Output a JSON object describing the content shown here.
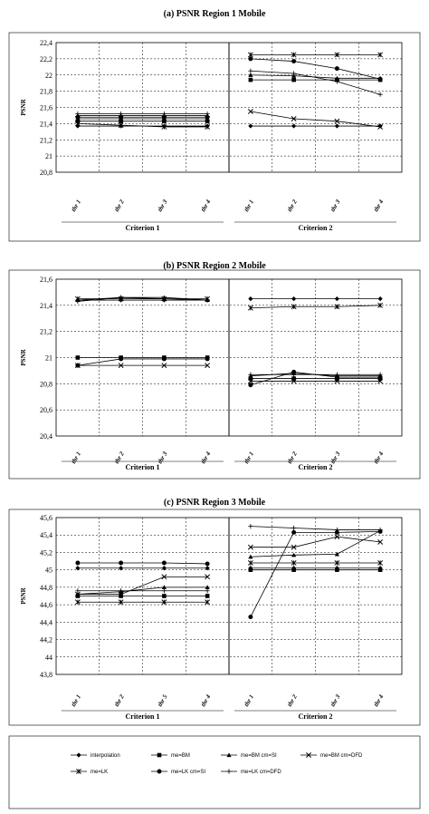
{
  "chart_data": [
    {
      "type": "line",
      "title": "(a)   PSNR Region 1 Mobile",
      "ylabel": "PSNR",
      "ylim": [
        20.8,
        22.4
      ],
      "yticks": [
        "20,8",
        "21",
        "21,2",
        "21,4",
        "21,6",
        "21,8",
        "22",
        "22,2",
        "22,4"
      ],
      "ytick_values": [
        20.8,
        21,
        21.2,
        21.4,
        21.6,
        21.8,
        22,
        22.2,
        22.4
      ],
      "groups": [
        {
          "label": "Criterion 1",
          "categories": [
            "thr 1",
            "thr 2",
            "thr 3",
            "thr 4"
          ]
        },
        {
          "label": "Criterion 2",
          "categories": [
            "thr 1",
            "thr 2",
            "thr 3",
            "thr 4"
          ]
        }
      ],
      "series": [
        {
          "name": "interpolation",
          "values": [
            [
              21.37,
              21.37,
              21.37,
              21.37
            ],
            [
              21.37,
              21.37,
              21.37,
              21.37
            ]
          ]
        },
        {
          "name": "me=BM",
          "values": [
            [
              21.43,
              21.43,
              21.43,
              21.43
            ],
            [
              21.94,
              21.94,
              21.94,
              21.94
            ]
          ]
        },
        {
          "name": "me=BM cm=SI",
          "values": [
            [
              21.5,
              21.5,
              21.5,
              21.5
            ],
            [
              22.0,
              21.99,
              21.96,
              21.96
            ]
          ]
        },
        {
          "name": "me=BM cm=DFD",
          "values": [
            [
              21.46,
              21.46,
              21.46,
              21.46
            ],
            [
              21.55,
              21.46,
              21.43,
              21.36
            ]
          ]
        },
        {
          "name": "me=LK",
          "values": [
            [
              21.4,
              21.38,
              21.36,
              21.36
            ],
            [
              22.25,
              22.25,
              22.25,
              22.25
            ]
          ]
        },
        {
          "name": "me=LK cm=SI",
          "values": [
            [
              21.48,
              21.48,
              21.48,
              21.48
            ],
            [
              22.2,
              22.17,
              22.08,
              21.95
            ]
          ]
        },
        {
          "name": "me=LK cm=DFD",
          "values": [
            [
              21.52,
              21.52,
              21.52,
              21.52
            ],
            [
              22.05,
              22.02,
              21.92,
              21.76
            ]
          ]
        }
      ]
    },
    {
      "type": "line",
      "title": "(b)   PSNR Region 2 Mobile",
      "ylabel": "PSNR",
      "ylim": [
        20.4,
        21.6
      ],
      "yticks": [
        "20,4",
        "20,6",
        "20,8",
        "21",
        "21,2",
        "21,4",
        "21,6"
      ],
      "ytick_values": [
        20.4,
        20.6,
        20.8,
        21,
        21.2,
        21.4,
        21.6
      ],
      "groups": [
        {
          "label": "Criterion 1",
          "categories": [
            "thr 1",
            "thr 2",
            "thr 3",
            "thr 4"
          ]
        },
        {
          "label": "Criterion 2",
          "categories": [
            "thr 1",
            "thr 2",
            "thr 3",
            "thr 4"
          ]
        }
      ],
      "series": [
        {
          "name": "interpolation",
          "values": [
            [
              21.44,
              21.44,
              21.44,
              21.44
            ],
            [
              21.45,
              21.45,
              21.45,
              21.45
            ]
          ]
        },
        {
          "name": "me=BM",
          "values": [
            [
              21.0,
              21.0,
              21.0,
              21.0
            ],
            [
              20.84,
              20.84,
              20.84,
              20.84
            ]
          ]
        },
        {
          "name": "me=BM cm=SI",
          "values": [
            [
              21.44,
              21.46,
              21.46,
              21.44
            ],
            [
              20.86,
              20.88,
              20.86,
              20.86
            ]
          ]
        },
        {
          "name": "me=BM cm=DFD",
          "values": [
            [
              20.94,
              20.94,
              20.94,
              20.94
            ],
            [
              20.82,
              20.82,
              20.82,
              20.82
            ]
          ]
        },
        {
          "name": "me=LK",
          "values": [
            [
              21.45,
              21.45,
              21.45,
              21.45
            ],
            [
              21.38,
              21.39,
              21.39,
              21.4
            ]
          ]
        },
        {
          "name": "me=LK cm=SI",
          "values": [
            [
              20.94,
              20.99,
              20.99,
              20.99
            ],
            [
              20.79,
              20.89,
              20.85,
              20.85
            ]
          ]
        },
        {
          "name": "me=LK cm=DFD",
          "values": [
            [
              21.43,
              21.46,
              21.45,
              21.44
            ],
            [
              20.87,
              20.87,
              20.87,
              20.87
            ]
          ]
        }
      ]
    },
    {
      "type": "line",
      "title": "(c)   PSNR Region 3 Mobile",
      "ylabel": "PSNR",
      "ylim": [
        43.8,
        45.6
      ],
      "yticks": [
        "43,8",
        "44",
        "44,2",
        "44,4",
        "44,6",
        "44,8",
        "45",
        "45,2",
        "45,4",
        "45,6"
      ],
      "ytick_values": [
        43.8,
        44,
        44.2,
        44.4,
        44.6,
        44.8,
        45,
        45.2,
        45.4,
        45.6
      ],
      "groups": [
        {
          "label": "Criterion 1",
          "categories": [
            "thr 1",
            "thr 2",
            "thr 5",
            "thr 4"
          ]
        },
        {
          "label": "Criterion 2",
          "categories": [
            "thr 1",
            "thr 2",
            "thr 3",
            "thr 4"
          ]
        }
      ],
      "series": [
        {
          "name": "interpolation",
          "values": [
            [
              45.02,
              45.02,
              45.02,
              45.02
            ],
            [
              45.02,
              45.02,
              45.02,
              45.02
            ]
          ]
        },
        {
          "name": "me=BM",
          "values": [
            [
              44.7,
              44.7,
              44.7,
              44.7
            ],
            [
              45.0,
              45.0,
              45.0,
              45.0
            ]
          ]
        },
        {
          "name": "me=BM cm=SI",
          "values": [
            [
              44.72,
              44.75,
              44.8,
              44.8
            ],
            [
              45.15,
              45.17,
              45.18,
              45.45
            ]
          ]
        },
        {
          "name": "me=BM cm=DFD",
          "values": [
            [
              44.72,
              44.72,
              44.92,
              44.92
            ],
            [
              45.26,
              45.26,
              45.38,
              45.32
            ]
          ]
        },
        {
          "name": "me=LK",
          "values": [
            [
              44.63,
              44.63,
              44.63,
              44.63
            ],
            [
              45.08,
              45.08,
              45.08,
              45.08
            ]
          ]
        },
        {
          "name": "me=LK cm=SI",
          "values": [
            [
              45.08,
              45.08,
              45.08,
              45.07
            ],
            [
              44.46,
              45.43,
              45.43,
              45.44
            ]
          ]
        },
        {
          "name": "me=LK cm=DFD",
          "values": [
            [
              44.76,
              44.76,
              44.76,
              44.76
            ],
            [
              45.5,
              45.48,
              45.46,
              45.46
            ]
          ]
        }
      ]
    }
  ],
  "legend": [
    {
      "name": "interpolation",
      "marker": "diamond"
    },
    {
      "name": "me=BM",
      "marker": "square"
    },
    {
      "name": "me=BM cm=SI",
      "marker": "triangle"
    },
    {
      "name": "me=BM cm=DFD",
      "marker": "x"
    },
    {
      "name": "me=LK",
      "marker": "star"
    },
    {
      "name": "me=LK cm=SI",
      "marker": "circle"
    },
    {
      "name": "me=LK cm=DFD",
      "marker": "plus"
    }
  ]
}
